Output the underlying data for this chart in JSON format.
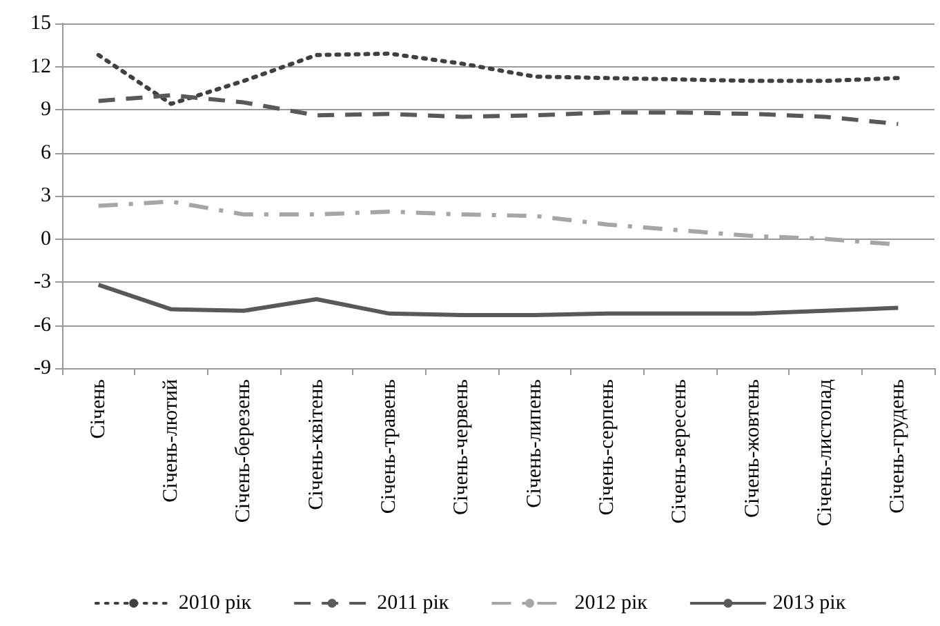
{
  "chart_data": {
    "type": "line",
    "categories": [
      "Січень",
      "Січень-лютий",
      "Січень-березень",
      "Січень-квітень",
      "Січень-травень",
      "Січень-червень",
      "Січень-липень",
      "Січень-серпень",
      "Січень-вересень",
      "Січень-жовтень",
      "Січень-листопад",
      "Січень-грудень"
    ],
    "series": [
      {
        "name": "2010 рік",
        "color": "#404040",
        "line_style": "dotted",
        "values": [
          12.8,
          9.4,
          11.0,
          12.8,
          12.9,
          12.2,
          11.3,
          11.2,
          11.1,
          11.0,
          11.0,
          11.2
        ]
      },
      {
        "name": "2011 рік",
        "color": "#595959",
        "line_style": "dashed",
        "values": [
          9.6,
          10.0,
          9.5,
          8.6,
          8.7,
          8.5,
          8.6,
          8.8,
          8.8,
          8.7,
          8.5,
          8.0
        ]
      },
      {
        "name": "2012 рік",
        "color": "#a6a6a6",
        "line_style": "dashdot",
        "values": [
          2.3,
          2.6,
          1.7,
          1.7,
          1.9,
          1.7,
          1.6,
          1.0,
          0.6,
          0.2,
          0.0,
          -0.4
        ]
      },
      {
        "name": "2013 рік",
        "color": "#595959",
        "line_style": "solid",
        "values": [
          -3.2,
          -4.9,
          -5.0,
          -4.2,
          -5.2,
          -5.3,
          -5.3,
          -5.2,
          -5.2,
          -5.2,
          -5.0,
          -4.8
        ]
      }
    ],
    "ylim": [
      -9,
      15
    ],
    "yticks": [
      -9,
      -6,
      -3,
      0,
      3,
      6,
      9,
      12,
      15
    ],
    "grid": "y",
    "legend": "bottom",
    "marker": "none"
  }
}
